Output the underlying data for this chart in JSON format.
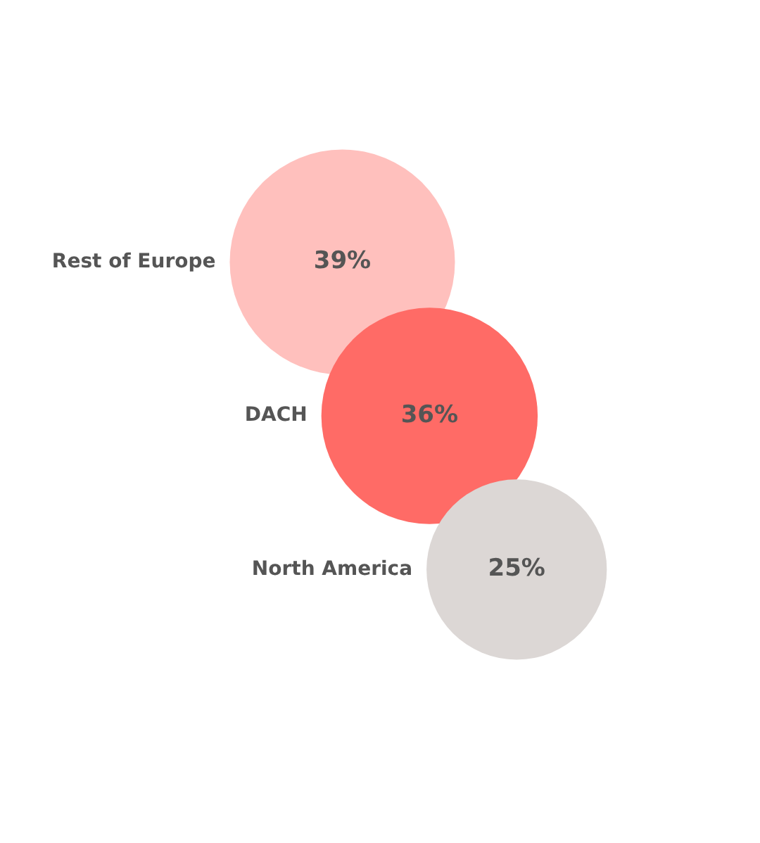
{
  "chart_data": {
    "type": "other",
    "categories": [
      "Rest of Europe",
      "DACH",
      "North America"
    ],
    "values": [
      39,
      36,
      25
    ],
    "value_labels": [
      "39%",
      "36%",
      "25%"
    ],
    "colors": [
      "#ffc0bd",
      "#ff6b66",
      "#dcd7d5"
    ]
  }
}
